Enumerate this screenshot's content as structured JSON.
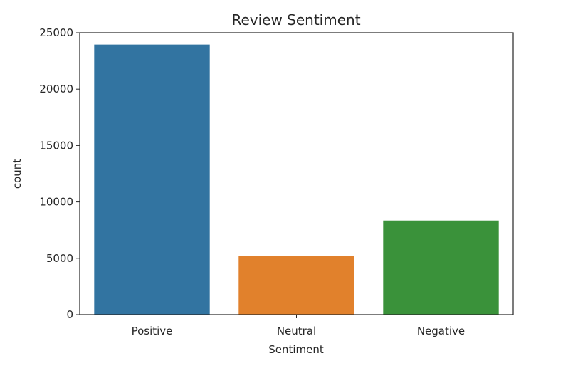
{
  "chart_data": {
    "type": "bar",
    "title": "Review Sentiment",
    "xlabel": "Sentiment",
    "ylabel": "count",
    "categories": [
      "Positive",
      "Neutral",
      "Negative"
    ],
    "values": [
      23950,
      5200,
      8350
    ],
    "colors": [
      "#3274a1",
      "#e1812c",
      "#3a923a"
    ],
    "ylim": [
      0,
      25000
    ],
    "yticks": [
      0,
      5000,
      10000,
      15000,
      20000,
      25000
    ],
    "ytick_labels": [
      "0",
      "5000",
      "10000",
      "15000",
      "20000",
      "25000"
    ],
    "grid": false,
    "legend": false
  }
}
